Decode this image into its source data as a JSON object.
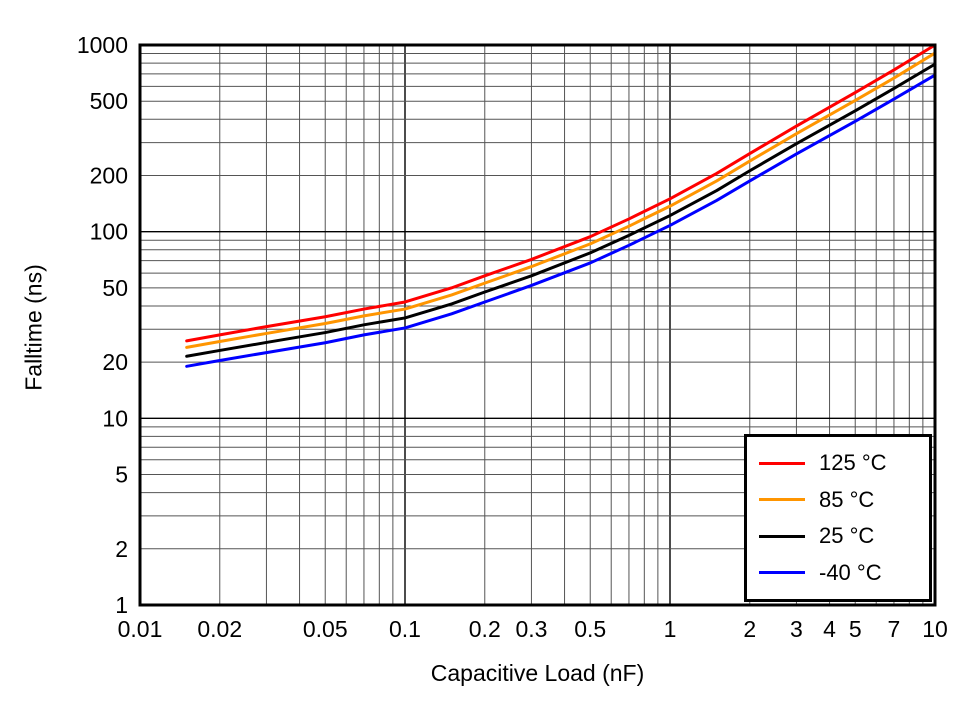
{
  "chart_data": {
    "type": "line",
    "title": "",
    "xlabel": "Capacitive Load (nF)",
    "ylabel": "Falltime (ns)",
    "xscale": "log",
    "yscale": "log",
    "xlim": [
      0.01,
      10
    ],
    "ylim": [
      1,
      1000
    ],
    "grid": true,
    "legend_position": "lower right",
    "x_ticks": {
      "values": [
        0.01,
        0.02,
        0.05,
        0.1,
        0.2,
        0.3,
        0.5,
        1,
        2,
        3,
        4,
        5,
        7,
        10
      ],
      "labels": [
        "0.01",
        "0.02",
        "0.05",
        "0.1",
        "0.2",
        "0.3",
        "0.5",
        "1",
        "2",
        "3",
        "4",
        "5",
        "7",
        "10"
      ]
    },
    "y_ticks": {
      "values": [
        1,
        2,
        5,
        10,
        20,
        50,
        100,
        200,
        500,
        1000
      ],
      "labels": [
        "1",
        "2",
        "5",
        "10",
        "20",
        "50",
        "100",
        "200",
        "500",
        "1000"
      ]
    },
    "x": [
      0.015,
      0.02,
      0.03,
      0.05,
      0.07,
      0.1,
      0.15,
      0.2,
      0.3,
      0.5,
      0.7,
      1,
      1.5,
      2,
      3,
      5,
      7,
      10
    ],
    "series": [
      {
        "name": "125 °C",
        "color": "#ff0000",
        "values": [
          26,
          28,
          31,
          35,
          38.5,
          42,
          50,
          58,
          71,
          94,
          117,
          150,
          205,
          262,
          368,
          556,
          735,
          1000
        ]
      },
      {
        "name": "85 °C",
        "color": "#ff9500",
        "values": [
          24,
          25.8,
          28.5,
          32.2,
          35.4,
          38.5,
          45.8,
          53,
          65,
          86,
          107,
          137,
          187,
          239,
          335,
          505,
          665,
          905
        ]
      },
      {
        "name": "25 °C",
        "color": "#000000",
        "values": [
          21.5,
          23.1,
          25.5,
          28.8,
          31.7,
          34.5,
          41,
          47.5,
          58,
          77,
          95.5,
          122,
          166,
          212,
          296,
          444,
          585,
          790
        ]
      },
      {
        "name": "-40 °C",
        "color": "#0000ff",
        "values": [
          19,
          20.4,
          22.5,
          25.4,
          28,
          30.5,
          36.3,
          42,
          51.5,
          68,
          84.5,
          108,
          147,
          187,
          261,
          390,
          513,
          690
        ]
      }
    ]
  }
}
